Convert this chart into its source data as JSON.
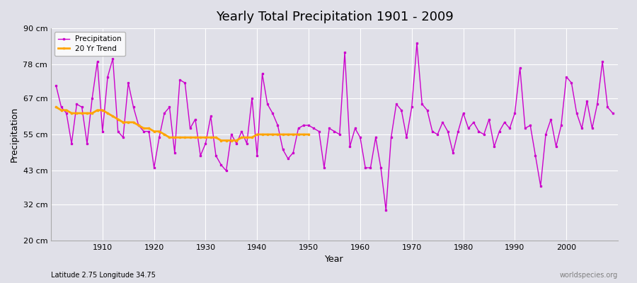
{
  "title": "Yearly Total Precipitation 1901 - 2009",
  "xlabel": "Year",
  "ylabel": "Precipitation",
  "lat_lon_label": "Latitude 2.75 Longitude 34.75",
  "watermark": "worldspecies.org",
  "precip_color": "#cc00cc",
  "trend_color": "#ffa500",
  "bg_color": "#e0e0e8",
  "grid_color": "#ffffff",
  "ylim": [
    20,
    90
  ],
  "yticks": [
    20,
    32,
    43,
    55,
    67,
    78,
    90
  ],
  "ytick_labels": [
    "20 cm",
    "32 cm",
    "43 cm",
    "55 cm",
    "67 cm",
    "78 cm",
    "90 cm"
  ],
  "years": [
    1901,
    1902,
    1903,
    1904,
    1905,
    1906,
    1907,
    1908,
    1909,
    1910,
    1911,
    1912,
    1913,
    1914,
    1915,
    1916,
    1917,
    1918,
    1919,
    1920,
    1921,
    1922,
    1923,
    1924,
    1925,
    1926,
    1927,
    1928,
    1929,
    1930,
    1931,
    1932,
    1933,
    1934,
    1935,
    1936,
    1937,
    1938,
    1939,
    1940,
    1941,
    1942,
    1943,
    1944,
    1945,
    1946,
    1947,
    1948,
    1949,
    1950,
    1951,
    1952,
    1953,
    1954,
    1955,
    1956,
    1957,
    1958,
    1959,
    1960,
    1961,
    1962,
    1963,
    1964,
    1965,
    1966,
    1967,
    1968,
    1969,
    1970,
    1971,
    1972,
    1973,
    1974,
    1975,
    1976,
    1977,
    1978,
    1979,
    1980,
    1981,
    1982,
    1983,
    1984,
    1985,
    1986,
    1987,
    1988,
    1989,
    1990,
    1991,
    1992,
    1993,
    1994,
    1995,
    1996,
    1997,
    1998,
    1999,
    2000,
    2001,
    2002,
    2003,
    2004,
    2005,
    2006,
    2007,
    2008,
    2009
  ],
  "precip": [
    71,
    64,
    62,
    52,
    65,
    64,
    52,
    67,
    79,
    56,
    74,
    80,
    56,
    54,
    72,
    64,
    58,
    56,
    56,
    44,
    54,
    62,
    64,
    49,
    73,
    72,
    57,
    60,
    48,
    52,
    61,
    48,
    45,
    43,
    55,
    52,
    56,
    52,
    67,
    48,
    75,
    65,
    62,
    58,
    50,
    47,
    49,
    57,
    58,
    58,
    57,
    56,
    44,
    57,
    56,
    55,
    82,
    51,
    57,
    54,
    44,
    44,
    54,
    44,
    30,
    54,
    65,
    63,
    54,
    64,
    85,
    65,
    63,
    56,
    55,
    59,
    56,
    49,
    56,
    62,
    57,
    59,
    56,
    55,
    60,
    51,
    56,
    59,
    57,
    62,
    77,
    57,
    58,
    48,
    38,
    55,
    60,
    51,
    58,
    74,
    72,
    62,
    57,
    66,
    57,
    65,
    79,
    64,
    62
  ],
  "trend_years": [
    1901,
    1902,
    1903,
    1904,
    1905,
    1906,
    1907,
    1908,
    1909,
    1910,
    1911,
    1912,
    1913,
    1914,
    1915,
    1916,
    1917,
    1918,
    1919,
    1920,
    1921,
    1922,
    1923,
    1924,
    1925,
    1926,
    1927,
    1928,
    1929,
    1930,
    1931,
    1932,
    1933,
    1934,
    1935,
    1936,
    1937,
    1938,
    1939,
    1940,
    1941,
    1942,
    1943,
    1944,
    1945,
    1946,
    1947,
    1948,
    1949,
    1950
  ],
  "trend": [
    64,
    63,
    63,
    62,
    62,
    62,
    62,
    62,
    63,
    63,
    62,
    61,
    60,
    59,
    59,
    59,
    58,
    57,
    57,
    56,
    56,
    55,
    54,
    54,
    54,
    54,
    54,
    54,
    54,
    54,
    54,
    54,
    53,
    53,
    53,
    53,
    54,
    54,
    54,
    55,
    55,
    55,
    55,
    55,
    55,
    55,
    55,
    55,
    55,
    55
  ]
}
